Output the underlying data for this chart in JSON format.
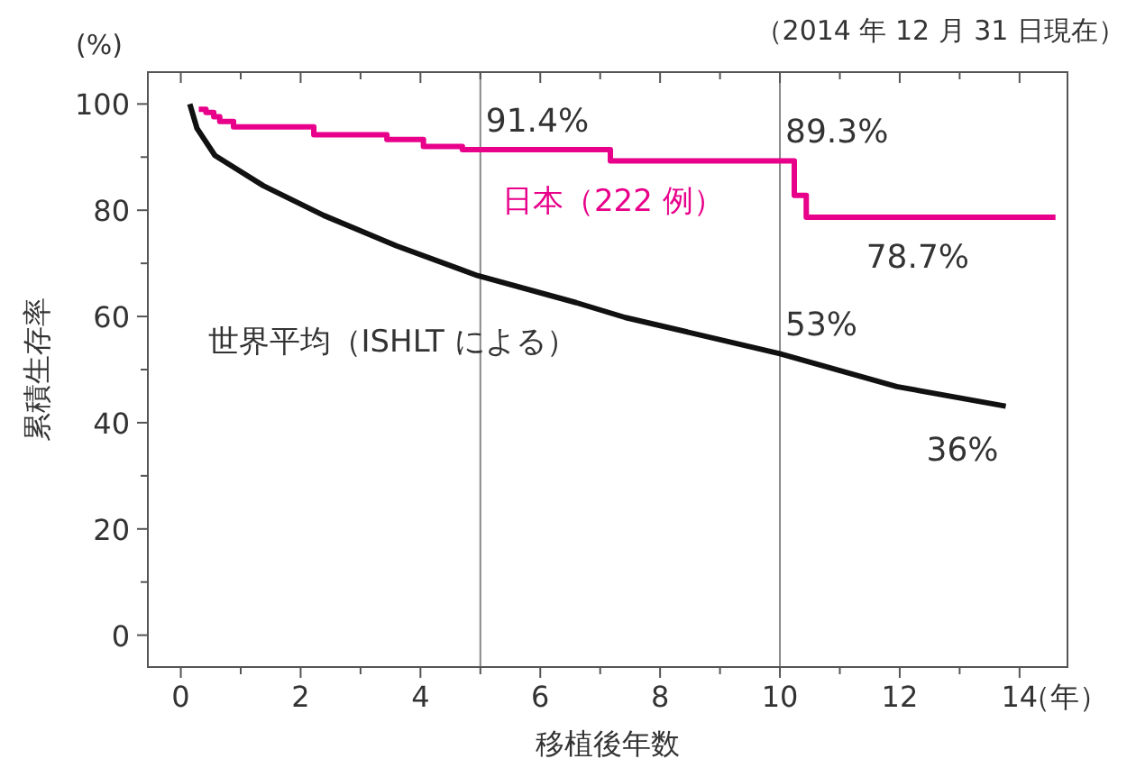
{
  "chart_data": {
    "type": "step",
    "ylabel": "累積生存率",
    "xlabel": "移植後年数",
    "title": "(%)",
    "subtitle": "（2014 年 12 月 31 日現在）",
    "xlim": [
      -0.55,
      14.8
    ],
    "ylim": [
      -6,
      106
    ],
    "xticks": [
      0,
      {
        "value": 1,
        "label": null
      },
      2,
      {
        "value": 3,
        "label": null
      },
      4,
      {
        "value": 5,
        "label": null
      },
      6,
      {
        "value": 7,
        "label": null
      },
      8,
      {
        "value": 9,
        "label": null
      },
      10,
      {
        "value": 11,
        "label": null
      },
      12,
      {
        "value": 13,
        "label": null
      },
      14,
      {
        "value": 14.75,
        "label": "（年）"
      }
    ],
    "yticks": [
      0,
      {
        "value": 10,
        "label": null
      },
      20,
      {
        "value": 30,
        "label": null
      },
      40,
      {
        "value": 50,
        "label": null
      },
      60,
      {
        "value": 70,
        "label": null
      },
      80,
      {
        "value": 90,
        "label": null
      },
      100
    ],
    "grid": false,
    "legend": false,
    "marker": "none",
    "line_style": "solid",
    "ref_lines": [
      {
        "axis": "x",
        "value": 5,
        "color": "#888888"
      },
      {
        "axis": "x",
        "value": 10,
        "color": "#888888"
      }
    ],
    "series": [
      {
        "name": "日本（222 例）",
        "color": "#e8008a",
        "x": [
          0.3,
          0.42,
          0.55,
          0.65,
          0.88,
          2.22,
          3.44,
          4.05,
          4.7,
          7.17,
          10.24,
          10.44,
          14.6
        ],
        "values": [
          99.0,
          98.4,
          97.6,
          96.7,
          95.7,
          94.2,
          93.3,
          92.0,
          91.4,
          89.3,
          82.8,
          78.7,
          78.7
        ]
      },
      {
        "name": "世界平均（ISHLT による）",
        "color": "#111111",
        "type": "line",
        "x": [
          0.15,
          0.27,
          0.57,
          1.38,
          2.39,
          3.6,
          4.95,
          6.6,
          7.42,
          10,
          11.95,
          13.77
        ],
        "values": [
          100,
          95.4,
          90.3,
          84.6,
          79,
          73.3,
          67.7,
          62.6,
          59.8,
          53,
          46.8,
          43.1
        ]
      }
    ],
    "annotations": [
      {
        "text": "91.4%",
        "x": 5,
        "y": 91.4
      },
      {
        "text": "89.3%",
        "x": 10,
        "y": 89.3
      },
      {
        "text": "78.7%",
        "x": 12.3,
        "y": 78.7
      },
      {
        "text": "53%",
        "x": 10,
        "y": 53
      },
      "36%"
    ]
  }
}
